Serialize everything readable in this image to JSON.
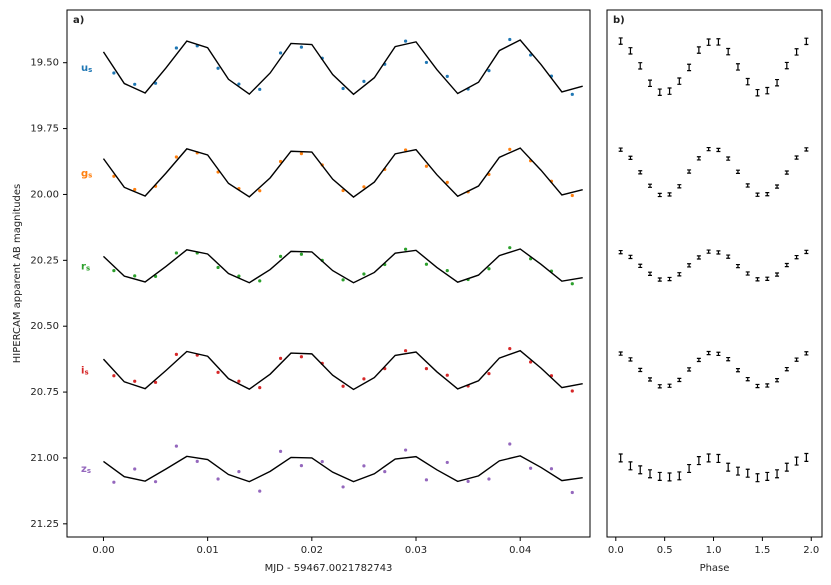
{
  "chart_data": [
    {
      "type": "scatter",
      "title": "a)",
      "x_label": "MJD - 59467.0021782743",
      "y_label": "HIPERCAM apparent AB magnitudes",
      "xlim": [
        -0.0035,
        0.0467
      ],
      "ylim": [
        19.3,
        21.3
      ],
      "y_inverted": true,
      "xticks": [
        {
          "value": 0,
          "label": "0.00"
        },
        0.01,
        0.02,
        0.03,
        0.04
      ],
      "yticks": [
        {
          "value": 19.5,
          "label": "19.50"
        },
        19.75,
        {
          "value": 20,
          "label": "20.00"
        },
        20.25,
        {
          "value": 20.5,
          "label": "20.50"
        },
        20.75,
        {
          "value": 21,
          "label": "21.00"
        },
        21.25
      ],
      "model_color": "#000000",
      "x": [
        0.001,
        0.003,
        0.005,
        0.007,
        0.009,
        0.011,
        0.013,
        0.015,
        0.017,
        0.019,
        0.021,
        0.023,
        0.025,
        0.027,
        0.029,
        0.031,
        0.033,
        0.035,
        0.037,
        0.039,
        0.041,
        0.043,
        0.045
      ],
      "model_x": [
        0,
        0.002,
        0.004,
        0.006,
        0.008,
        0.01,
        0.012,
        0.014,
        0.016,
        0.018,
        0.02,
        0.022,
        0.024,
        0.026,
        0.028,
        0.03,
        0.032,
        0.034,
        0.036,
        0.038,
        0.04,
        0.042,
        0.044,
        0.046
      ],
      "series": [
        {
          "name": "u",
          "subscript": "s",
          "color": "#1f77b4",
          "values": [
            19.539,
            19.582,
            19.578,
            19.444,
            19.436,
            19.521,
            19.581,
            19.601,
            19.463,
            19.441,
            19.483,
            19.598,
            19.571,
            19.506,
            19.418,
            19.499,
            19.552,
            19.6,
            19.53,
            19.412,
            19.471,
            19.551,
            19.62
          ],
          "model_values": [
            19.459,
            19.579,
            19.615,
            19.52,
            19.418,
            19.443,
            19.563,
            19.619,
            19.539,
            19.427,
            19.431,
            19.545,
            19.62,
            19.557,
            19.439,
            19.421,
            19.526,
            19.617,
            19.574,
            19.454,
            19.414,
            19.507,
            19.611,
            19.589
          ]
        },
        {
          "name": "g",
          "subscript": "s",
          "color": "#ff7f0e",
          "values": [
            19.931,
            19.981,
            19.969,
            19.858,
            19.842,
            19.915,
            19.978,
            19.986,
            19.875,
            19.845,
            19.888,
            19.985,
            19.971,
            19.905,
            19.831,
            19.893,
            19.954,
            19.99,
            19.924,
            19.829,
            19.872,
            19.95,
            20.004
          ],
          "model_values": [
            19.864,
            19.973,
            20.006,
            19.919,
            19.827,
            19.85,
            19.958,
            20.009,
            19.937,
            19.836,
            19.839,
            19.942,
            20.01,
            19.953,
            19.846,
            19.83,
            19.925,
            20.007,
            19.968,
            19.859,
            19.824,
            19.908,
            20.002,
            19.982
          ]
        },
        {
          "name": "r",
          "subscript": "s",
          "color": "#2ca02c",
          "values": [
            20.289,
            20.309,
            20.311,
            20.222,
            20.222,
            20.277,
            20.31,
            20.328,
            20.235,
            20.227,
            20.25,
            20.324,
            20.302,
            20.266,
            20.208,
            20.265,
            20.289,
            20.323,
            20.282,
            20.202,
            20.244,
            20.291,
            20.339
          ],
          "model_values": [
            20.235,
            20.31,
            20.332,
            20.273,
            20.21,
            20.226,
            20.3,
            20.335,
            20.285,
            20.216,
            20.218,
            20.289,
            20.335,
            20.296,
            20.223,
            20.212,
            20.277,
            20.333,
            20.306,
            20.232,
            20.207,
            20.265,
            20.329,
            20.316
          ]
        },
        {
          "name": "i",
          "subscript": "s",
          "color": "#d62728",
          "values": [
            20.688,
            20.709,
            20.713,
            20.607,
            20.61,
            20.675,
            20.709,
            20.733,
            20.622,
            20.616,
            20.641,
            20.728,
            20.7,
            20.661,
            20.593,
            20.661,
            20.686,
            20.727,
            20.68,
            20.585,
            20.636,
            20.688,
            20.746
          ],
          "model_values": [
            20.625,
            20.711,
            20.737,
            20.668,
            20.596,
            20.614,
            20.699,
            20.739,
            20.682,
            20.602,
            20.605,
            20.686,
            20.74,
            20.695,
            20.611,
            20.598,
            20.673,
            20.738,
            20.707,
            20.621,
            20.593,
            20.659,
            20.733,
            20.718
          ]
        },
        {
          "name": "z",
          "subscript": "s",
          "color": "#9467bd",
          "values": [
            21.092,
            21.042,
            21.09,
            20.955,
            21.013,
            21.08,
            21.052,
            21.126,
            20.975,
            21.029,
            21.014,
            21.11,
            21.03,
            21.052,
            20.97,
            21.083,
            21.017,
            21.089,
            21.08,
            20.947,
            21.039,
            21.041,
            21.131
          ],
          "model_values": [
            21.013,
            21.071,
            21.088,
            21.042,
            20.994,
            21.006,
            21.063,
            21.09,
            21.051,
            20.998,
            21.0,
            21.054,
            21.09,
            21.06,
            21.004,
            20.995,
            21.045,
            21.089,
            21.068,
            21.011,
            20.992,
            21.036,
            21.086,
            21.075
          ]
        }
      ]
    },
    {
      "type": "errorbar",
      "title": "b)",
      "x_label": "Phase",
      "xlim": [
        -0.09,
        2.11
      ],
      "ylim": [
        19.3,
        21.3
      ],
      "y_inverted": true,
      "xticks": [
        {
          "value": 0,
          "label": "0.0"
        },
        0.5,
        {
          "value": 1,
          "label": "1.0"
        },
        1.5,
        {
          "value": 2,
          "label": "2.0"
        }
      ],
      "color": "#000000",
      "x": [
        0.05,
        0.15,
        0.25,
        0.35,
        0.45,
        0.55,
        0.65,
        0.75,
        0.85,
        0.95,
        1.05,
        1.15,
        1.25,
        1.35,
        1.45,
        1.55,
        1.65,
        1.75,
        1.85,
        1.95
      ],
      "series": [
        {
          "values": [
            19.418,
            19.455,
            19.512,
            19.578,
            19.612,
            19.608,
            19.57,
            19.518,
            19.452,
            19.422,
            19.421,
            19.458,
            19.516,
            19.572,
            19.614,
            19.606,
            19.576,
            19.511,
            19.459,
            19.419
          ],
          "errors": [
            0.012,
            0.012,
            0.012,
            0.012,
            0.012,
            0.012,
            0.012,
            0.012,
            0.012,
            0.012,
            0.012,
            0.012,
            0.012,
            0.012,
            0.012,
            0.012,
            0.012,
            0.012,
            0.012,
            0.012
          ]
        },
        {
          "values": [
            19.83,
            19.861,
            19.916,
            19.967,
            20.002,
            20.0,
            19.969,
            19.913,
            19.863,
            19.828,
            19.831,
            19.864,
            19.914,
            19.966,
            20.001,
            19.999,
            19.97,
            19.917,
            19.86,
            19.829
          ],
          "errors": [
            0.006,
            0.006,
            0.006,
            0.006,
            0.006,
            0.006,
            0.006,
            0.006,
            0.006,
            0.006,
            0.006,
            0.006,
            0.006,
            0.006,
            0.006,
            0.006,
            0.006,
            0.006,
            0.006,
            0.006
          ]
        },
        {
          "values": [
            20.219,
            20.237,
            20.271,
            20.301,
            20.323,
            20.321,
            20.303,
            20.269,
            20.239,
            20.217,
            20.22,
            20.236,
            20.272,
            20.3,
            20.322,
            20.32,
            20.304,
            20.268,
            20.238,
            20.218
          ],
          "errors": [
            0.006,
            0.006,
            0.006,
            0.006,
            0.006,
            0.006,
            0.006,
            0.006,
            0.006,
            0.006,
            0.006,
            0.006,
            0.006,
            0.006,
            0.006,
            0.006,
            0.006,
            0.006,
            0.006,
            0.006
          ]
        },
        {
          "values": [
            20.604,
            20.626,
            20.666,
            20.702,
            20.728,
            20.726,
            20.704,
            20.664,
            20.628,
            20.602,
            20.605,
            20.625,
            20.667,
            20.701,
            20.727,
            20.725,
            20.705,
            20.663,
            20.627,
            20.603
          ],
          "errors": [
            0.006,
            0.006,
            0.006,
            0.006,
            0.006,
            0.006,
            0.006,
            0.006,
            0.006,
            0.006,
            0.006,
            0.006,
            0.006,
            0.006,
            0.006,
            0.006,
            0.006,
            0.006,
            0.006,
            0.006
          ]
        },
        {
          "values": [
            21.0,
            21.03,
            21.045,
            21.06,
            21.07,
            21.072,
            21.068,
            21.04,
            21.01,
            21.0,
            21.002,
            21.035,
            21.05,
            21.058,
            21.075,
            21.07,
            21.06,
            21.035,
            21.012,
            20.998
          ],
          "errors": [
            0.015,
            0.015,
            0.015,
            0.015,
            0.015,
            0.015,
            0.015,
            0.015,
            0.015,
            0.015,
            0.015,
            0.015,
            0.015,
            0.015,
            0.015,
            0.015,
            0.015,
            0.015,
            0.015,
            0.015
          ]
        }
      ]
    }
  ]
}
